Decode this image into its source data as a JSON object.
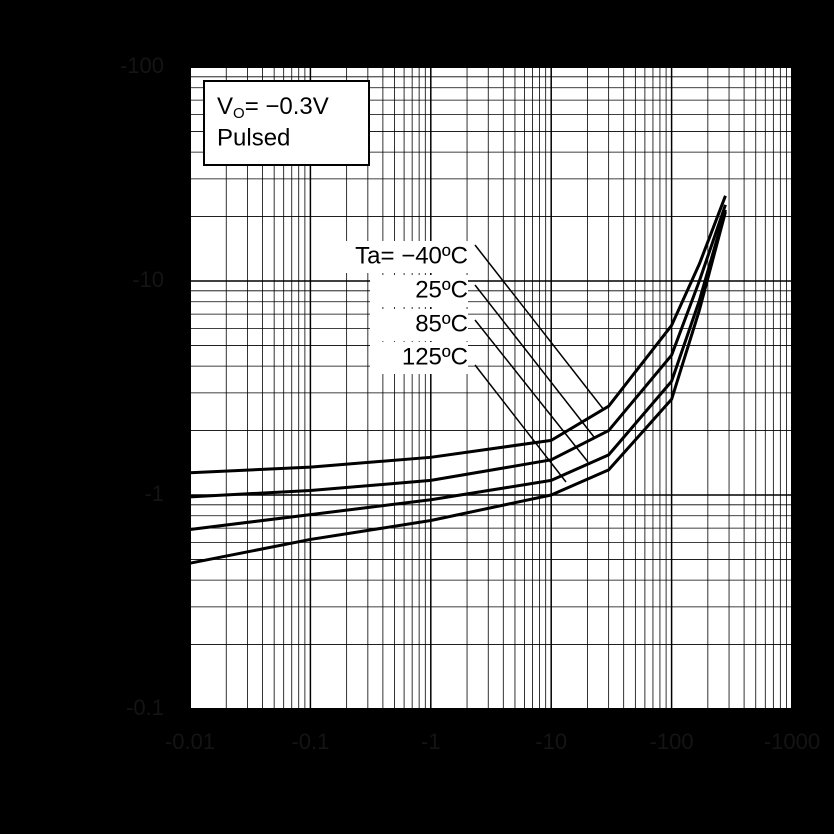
{
  "chart_data": {
    "type": "line",
    "annotation": {
      "symbol": "V",
      "subscript": "O",
      "text": "= −0.3V",
      "note": "Pulsed"
    },
    "x": [
      -0.01,
      -0.1,
      -1,
      -10,
      -30,
      -100,
      -170,
      -280
    ],
    "series": [
      {
        "name": "Ta= −40ºC",
        "color": "#000000",
        "values": [
          -1.27,
          -1.35,
          -1.5,
          -1.8,
          -2.6,
          -6.2,
          -12,
          -25
        ]
      },
      {
        "name": "25ºC",
        "color": "#000000",
        "values": [
          -0.98,
          -1.05,
          -1.17,
          -1.46,
          -2.0,
          -4.5,
          -10,
          -22.7
        ]
      },
      {
        "name": "85ºC",
        "color": "#000000",
        "values": [
          -0.69,
          -0.81,
          -0.95,
          -1.17,
          -1.54,
          -3.4,
          -8.1,
          -21.5
        ]
      },
      {
        "name": "125ºC",
        "color": "#000000",
        "values": [
          -0.48,
          -0.62,
          -0.76,
          -1.0,
          -1.31,
          -2.8,
          -7.3,
          -21
        ]
      }
    ],
    "xlim": [
      -0.01,
      -1000
    ],
    "ylim": [
      -0.1,
      -100
    ],
    "xticks": [
      -0.01,
      -0.1,
      -1,
      -10,
      -100,
      -1000
    ],
    "yticks": [
      -0.1,
      -1,
      -10,
      -100
    ],
    "log_scale": true,
    "grid": true
  }
}
